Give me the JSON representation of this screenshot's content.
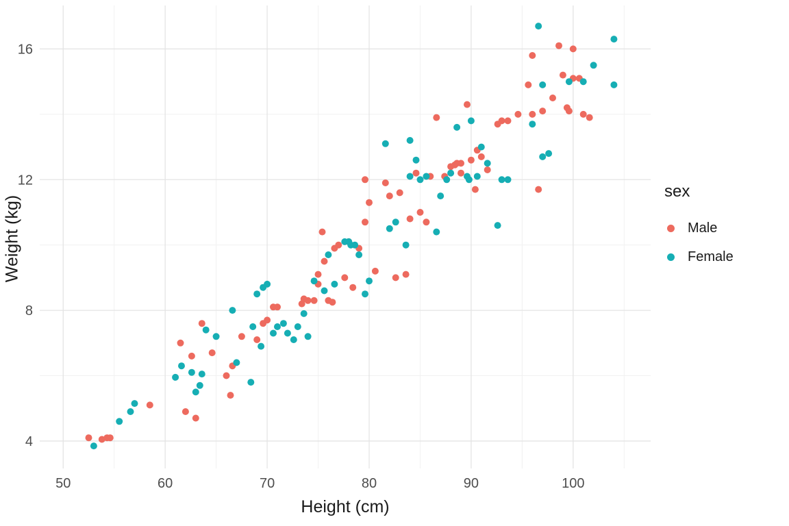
{
  "figure": {
    "background": "#FFFFFF",
    "grid_major_color": "#E4E4E4",
    "grid_minor_color": "#F1F1F1",
    "tick_label_color": "#4D4D4D"
  },
  "chart_data": {
    "type": "scatter",
    "title": "",
    "xlabel": "Height (cm)",
    "ylabel": "Weight (kg)",
    "xlim": [
      47.7,
      107.6
    ],
    "ylim": [
      3.16,
      17.33
    ],
    "x_ticks": [
      50,
      60,
      70,
      80,
      90,
      100
    ],
    "x_minor_ticks": [
      55,
      65,
      75,
      85,
      95,
      105
    ],
    "y_ticks": [
      4,
      8,
      12,
      16
    ],
    "y_minor_ticks": [
      6,
      10,
      14
    ],
    "grid": true,
    "legend": {
      "title": "sex",
      "position": "right"
    },
    "point_radius": 5,
    "series": [
      {
        "name": "Male",
        "color": "#ED6A5E",
        "points": [
          [
            52.5,
            4.1
          ],
          [
            53.8,
            4.05
          ],
          [
            54.3,
            4.1
          ],
          [
            54.6,
            4.1
          ],
          [
            58.5,
            5.1
          ],
          [
            61.5,
            7.0
          ],
          [
            62,
            4.9
          ],
          [
            62.6,
            6.6
          ],
          [
            63,
            4.7
          ],
          [
            63.6,
            7.6
          ],
          [
            64.6,
            6.7
          ],
          [
            66,
            6.0
          ],
          [
            66.4,
            5.4
          ],
          [
            66.6,
            6.3
          ],
          [
            67.5,
            7.2
          ],
          [
            69,
            7.1
          ],
          [
            69.6,
            7.6
          ],
          [
            70,
            7.7
          ],
          [
            70.6,
            8.1
          ],
          [
            71,
            8.1
          ],
          [
            73.4,
            8.2
          ],
          [
            73.6,
            8.35
          ],
          [
            74,
            8.3
          ],
          [
            74.6,
            8.3
          ],
          [
            75,
            9.1
          ],
          [
            75,
            8.8
          ],
          [
            75.4,
            10.4
          ],
          [
            75.6,
            9.5
          ],
          [
            76,
            8.3
          ],
          [
            76.4,
            8.25
          ],
          [
            76.6,
            9.9
          ],
          [
            77,
            10.0
          ],
          [
            77.6,
            9.0
          ],
          [
            78,
            10.1
          ],
          [
            78.4,
            8.7
          ],
          [
            79,
            9.9
          ],
          [
            79.6,
            12.0
          ],
          [
            79.6,
            10.7
          ],
          [
            80,
            11.3
          ],
          [
            80.6,
            9.2
          ],
          [
            81.6,
            11.9
          ],
          [
            82,
            11.5
          ],
          [
            82.6,
            9.0
          ],
          [
            83,
            11.6
          ],
          [
            83.6,
            9.1
          ],
          [
            84,
            10.8
          ],
          [
            84.6,
            12.2
          ],
          [
            85,
            11.0
          ],
          [
            85.6,
            10.7
          ],
          [
            86,
            12.1
          ],
          [
            86.6,
            13.9
          ],
          [
            87.4,
            12.1
          ],
          [
            88,
            12.4
          ],
          [
            88.4,
            12.45
          ],
          [
            88.6,
            12.5
          ],
          [
            89,
            12.5
          ],
          [
            89,
            12.2
          ],
          [
            89.6,
            14.3
          ],
          [
            90,
            12.6
          ],
          [
            90.4,
            11.7
          ],
          [
            90.6,
            12.9
          ],
          [
            91,
            12.7
          ],
          [
            91.6,
            12.3
          ],
          [
            92.6,
            13.7
          ],
          [
            93,
            13.8
          ],
          [
            93.6,
            13.8
          ],
          [
            94.6,
            14.0
          ],
          [
            95.6,
            14.9
          ],
          [
            96,
            15.8
          ],
          [
            96,
            14.0
          ],
          [
            96.6,
            11.7
          ],
          [
            97,
            14.1
          ],
          [
            98,
            14.5
          ],
          [
            98.6,
            16.1
          ],
          [
            99,
            15.2
          ],
          [
            99.4,
            14.2
          ],
          [
            99.6,
            14.1
          ],
          [
            100,
            16.0
          ],
          [
            100,
            15.1
          ],
          [
            100.6,
            15.1
          ],
          [
            101,
            14.0
          ],
          [
            101.6,
            13.9
          ]
        ]
      },
      {
        "name": "Female",
        "color": "#16AEB4",
        "points": [
          [
            53,
            3.85
          ],
          [
            55.5,
            4.6
          ],
          [
            56.6,
            4.9
          ],
          [
            57,
            5.15
          ],
          [
            61,
            5.95
          ],
          [
            61.6,
            6.3
          ],
          [
            62.6,
            6.1
          ],
          [
            63,
            5.5
          ],
          [
            63.4,
            5.7
          ],
          [
            63.6,
            6.05
          ],
          [
            64,
            7.4
          ],
          [
            65,
            7.2
          ],
          [
            66.6,
            8.0
          ],
          [
            67,
            6.4
          ],
          [
            68.4,
            5.8
          ],
          [
            68.6,
            7.5
          ],
          [
            69,
            8.5
          ],
          [
            69.4,
            6.9
          ],
          [
            69.6,
            8.7
          ],
          [
            70,
            8.8
          ],
          [
            70.6,
            7.3
          ],
          [
            71,
            7.5
          ],
          [
            71.6,
            7.6
          ],
          [
            72,
            7.3
          ],
          [
            72.6,
            7.1
          ],
          [
            73,
            7.5
          ],
          [
            73.6,
            7.9
          ],
          [
            74,
            7.2
          ],
          [
            74.6,
            8.9
          ],
          [
            75.6,
            8.6
          ],
          [
            76,
            9.7
          ],
          [
            76.6,
            8.8
          ],
          [
            77.6,
            10.1
          ],
          [
            78,
            10.1
          ],
          [
            78.2,
            10.0
          ],
          [
            78.6,
            10.0
          ],
          [
            79,
            9.7
          ],
          [
            79.6,
            8.5
          ],
          [
            80,
            8.9
          ],
          [
            81.6,
            13.1
          ],
          [
            82,
            10.5
          ],
          [
            82.6,
            10.7
          ],
          [
            83.6,
            10.0
          ],
          [
            84,
            13.2
          ],
          [
            84,
            12.1
          ],
          [
            84.6,
            12.6
          ],
          [
            85,
            12.0
          ],
          [
            85.6,
            12.1
          ],
          [
            86.6,
            10.4
          ],
          [
            87,
            11.5
          ],
          [
            87.6,
            12.0
          ],
          [
            88,
            12.2
          ],
          [
            88.6,
            13.6
          ],
          [
            89.6,
            12.1
          ],
          [
            89.8,
            12.0
          ],
          [
            90,
            13.8
          ],
          [
            90.6,
            12.1
          ],
          [
            91,
            13.0
          ],
          [
            91.6,
            12.5
          ],
          [
            92.6,
            10.6
          ],
          [
            93,
            12.0
          ],
          [
            93.6,
            12.0
          ],
          [
            96,
            13.7
          ],
          [
            96.6,
            16.7
          ],
          [
            97,
            12.7
          ],
          [
            97,
            14.9
          ],
          [
            97.6,
            12.8
          ],
          [
            99.6,
            15.0
          ],
          [
            101,
            15.0
          ],
          [
            102,
            15.5
          ],
          [
            104,
            16.3
          ],
          [
            104,
            14.9
          ]
        ]
      }
    ]
  }
}
